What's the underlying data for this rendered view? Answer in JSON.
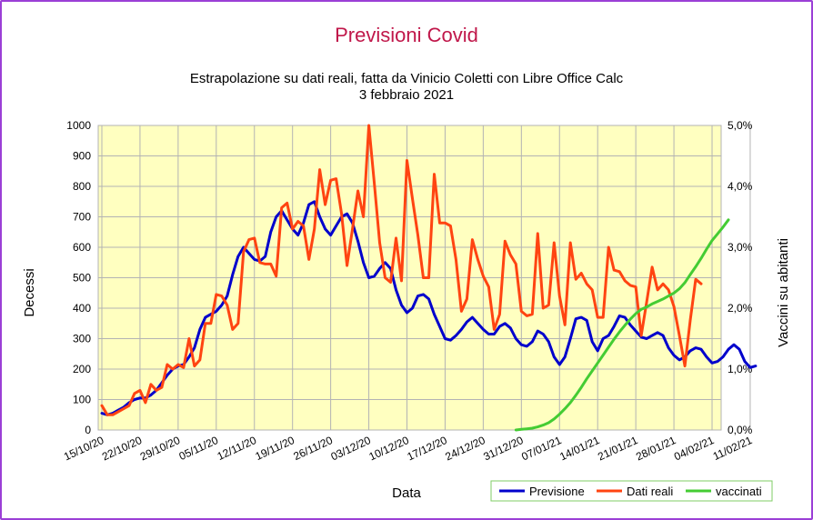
{
  "chart_data": {
    "type": "line",
    "title": "Previsioni Covid",
    "subtitle_line1": "Estrapolazione su dati reali, fatta da Vinicio Coletti con Libre Office Calc",
    "subtitle_line2": "3 febbraio 2021",
    "xlabel": "Data",
    "ylabel": "Decessi",
    "y2label": "Vaccini su abitanti",
    "ylim": [
      0,
      1000
    ],
    "y2lim": [
      0,
      5
    ],
    "yticks": [
      "0",
      "100",
      "200",
      "300",
      "400",
      "500",
      "600",
      "700",
      "800",
      "900",
      "1000"
    ],
    "y2ticks": [
      "0,0%",
      "1,0%",
      "2,0%",
      "3,0%",
      "4,0%",
      "5,0%"
    ],
    "xticks": [
      "15/10/20",
      "22/10/20",
      "29/10/20",
      "05/11/20",
      "12/11/20",
      "19/11/20",
      "26/11/20",
      "03/12/20",
      "10/12/20",
      "17/12/20",
      "24/12/20",
      "31/12/20",
      "07/01/21",
      "14/01/21",
      "21/01/21",
      "28/01/21",
      "04/02/21",
      "11/02/21"
    ],
    "x_start": "15/10/20",
    "grid": true,
    "background_color": "#ffffc0",
    "legend_position": "bottom-right",
    "series": [
      {
        "name": "Previsione",
        "color": "#0000cc",
        "axis": "left",
        "values": [
          55,
          50,
          55,
          65,
          75,
          90,
          100,
          105,
          105,
          115,
          130,
          155,
          180,
          200,
          210,
          215,
          240,
          270,
          330,
          370,
          380,
          390,
          410,
          440,
          510,
          570,
          600,
          580,
          560,
          555,
          570,
          650,
          700,
          720,
          690,
          660,
          640,
          680,
          740,
          750,
          700,
          660,
          640,
          670,
          700,
          710,
          680,
          620,
          550,
          500,
          505,
          530,
          550,
          530,
          460,
          410,
          385,
          400,
          440,
          445,
          430,
          380,
          340,
          300,
          295,
          310,
          330,
          355,
          370,
          350,
          330,
          315,
          315,
          340,
          350,
          335,
          300,
          280,
          275,
          290,
          325,
          315,
          290,
          240,
          215,
          240,
          300,
          365,
          370,
          360,
          290,
          260,
          300,
          310,
          340,
          375,
          370,
          345,
          325,
          305,
          300,
          310,
          320,
          310,
          270,
          245,
          230,
          240,
          260,
          270,
          265,
          240,
          220,
          225,
          240,
          265,
          280,
          265,
          225,
          205,
          210
        ]
      },
      {
        "name": "Dati reali",
        "color": "#ff4411",
        "axis": "left",
        "values": [
          80,
          50,
          50,
          60,
          70,
          80,
          120,
          130,
          90,
          150,
          130,
          140,
          215,
          200,
          215,
          205,
          300,
          210,
          230,
          350,
          350,
          445,
          440,
          410,
          330,
          350,
          585,
          625,
          630,
          550,
          545,
          545,
          505,
          730,
          745,
          660,
          685,
          670,
          560,
          660,
          855,
          740,
          820,
          825,
          710,
          540,
          660,
          785,
          700,
          1000,
          810,
          615,
          500,
          485,
          630,
          490,
          885,
          760,
          640,
          500,
          500,
          840,
          680,
          680,
          670,
          560,
          390,
          430,
          625,
          560,
          505,
          470,
          330,
          380,
          620,
          575,
          545,
          390,
          375,
          380,
          645,
          400,
          410,
          615,
          440,
          345,
          615,
          495,
          515,
          480,
          460,
          370,
          370,
          600,
          525,
          520,
          490,
          475,
          470,
          310,
          420,
          535,
          460,
          480,
          460,
          405,
          310,
          210,
          360,
          495,
          480
        ]
      },
      {
        "name": "vaccinati",
        "color": "#44cc33",
        "axis": "right",
        "values": [
          null,
          null,
          null,
          null,
          null,
          null,
          null,
          null,
          null,
          null,
          null,
          null,
          null,
          null,
          null,
          null,
          null,
          null,
          null,
          null,
          null,
          null,
          null,
          null,
          null,
          null,
          null,
          null,
          null,
          null,
          null,
          null,
          null,
          null,
          null,
          null,
          null,
          null,
          null,
          null,
          null,
          null,
          null,
          null,
          null,
          null,
          null,
          null,
          null,
          null,
          null,
          null,
          null,
          null,
          null,
          null,
          null,
          null,
          null,
          null,
          null,
          null,
          null,
          null,
          null,
          null,
          null,
          null,
          null,
          null,
          null,
          null,
          null,
          null,
          null,
          null,
          0.0,
          0.01,
          0.02,
          0.03,
          0.05,
          0.08,
          0.12,
          0.18,
          0.26,
          0.35,
          0.45,
          0.57,
          0.7,
          0.84,
          0.97,
          1.1,
          1.23,
          1.36,
          1.49,
          1.61,
          1.72,
          1.82,
          1.91,
          1.98,
          2.02,
          2.07,
          2.11,
          2.15,
          2.2,
          2.25,
          2.32,
          2.42,
          2.55,
          2.68,
          2.82,
          2.97,
          3.11,
          3.22,
          3.33,
          3.45
        ]
      }
    ]
  }
}
